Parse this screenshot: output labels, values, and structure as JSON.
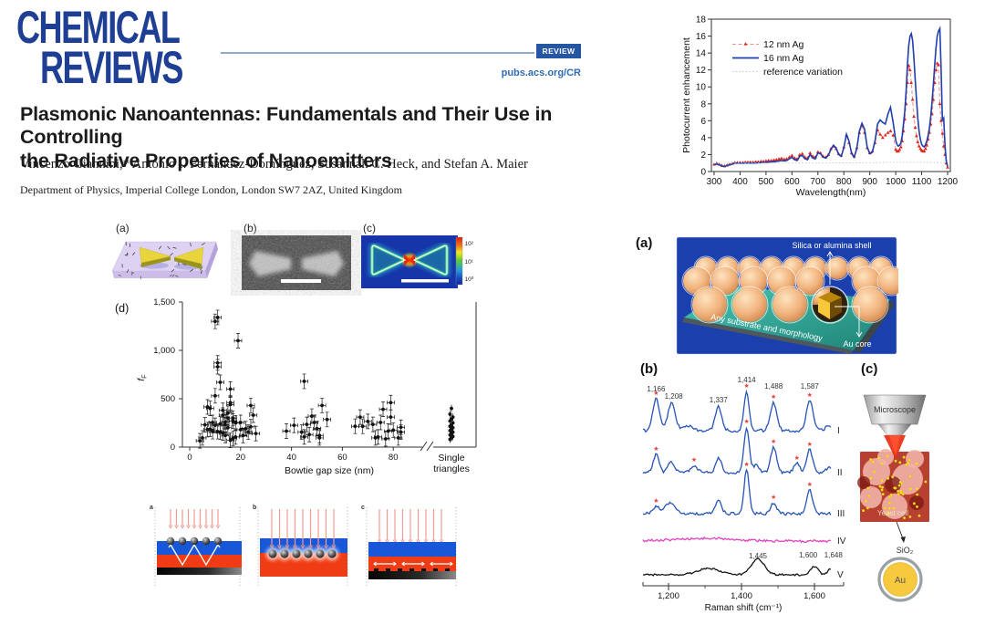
{
  "header": {
    "logo_line1": "CHEMICAL",
    "logo_line2": "REVIEWS",
    "badge_label": "REVIEW",
    "site_url": "pubs.acs.org/CR",
    "brand_color": "#1e3f94",
    "badge_color": "#2456a4"
  },
  "article": {
    "title_line1": "Plasmonic Nanoantennas: Fundamentals and Their Use in Controlling",
    "title_line2": "the Radiative Properties of Nanoemitters",
    "authors": "Vincenzo Giannini,* Antonio I. Fernández-Domínguez, Susannah C. Heck, and Stefan A. Maier",
    "affiliation": "Department of Physics, Imperial College London, London SW7 2AZ, United Kingdom"
  },
  "left_figure": {
    "panel_a_label": "(a)",
    "panel_b_label": "(b)",
    "panel_c_label": "(c)",
    "panel_d_label": "(d)",
    "colorbar_ticks": [
      "10²",
      "10¹",
      "10⁰"
    ],
    "bottom_panel_labels": [
      "a",
      "b",
      "c"
    ]
  },
  "right_figure": {
    "panel_a_label": "(a)",
    "panel_b_label": "(b)",
    "panel_c_label": "(c)",
    "shell_label": "Silica or alumina shell",
    "substrate_label": "Any substrate and morphology",
    "core_label": "Au core",
    "microscope_label": "Microscope",
    "cell_label": "Yeast cell",
    "sio2_label": "SiO₂",
    "au_label": "Au"
  },
  "chart_data": [
    {
      "id": "photocurrent",
      "type": "line",
      "title": "",
      "xlabel": "Wavelength(nm)",
      "ylabel": "Photocurrent enhancement",
      "xlim": [
        300,
        1200
      ],
      "ylim": [
        0,
        18
      ],
      "xticks": [
        300,
        400,
        500,
        600,
        700,
        800,
        900,
        1000,
        1100,
        1200
      ],
      "yticks": [
        0,
        2,
        4,
        6,
        8,
        10,
        12,
        14,
        16,
        18
      ],
      "legend_position": "upper-left-inside",
      "x_encoding": "segments [start,end,step]",
      "series": [
        {
          "name": "12 nm Ag",
          "style": "dashed",
          "stroke": "#f0928c",
          "marker": "triangle",
          "marker_color": "#e02318",
          "x_segments": [
            [
              300,
              990,
              10
            ],
            [
              1000,
              1200,
              5
            ]
          ],
          "y": [
            0.85,
            0.95,
            0.85,
            0.7,
            0.65,
            0.75,
            0.85,
            0.95,
            1.05,
            1.05,
            1.05,
            1.05,
            1.1,
            1.1,
            1.1,
            1.1,
            1.15,
            1.15,
            1.2,
            1.2,
            1.25,
            1.3,
            1.3,
            1.35,
            1.4,
            1.5,
            1.55,
            1.45,
            1.5,
            1.7,
            1.9,
            1.6,
            1.5,
            2.0,
            2.1,
            1.7,
            1.6,
            2.2,
            1.8,
            1.7,
            2.3,
            2.2,
            1.8,
            1.7,
            2.0,
            2.7,
            3.0,
            2.7,
            2.1,
            1.9,
            2.9,
            4.3,
            3.4,
            2.2,
            1.8,
            2.8,
            4.6,
            5.4,
            4.6,
            2.8,
            2.2,
            2.4,
            3.4,
            4.9,
            4.4,
            4.0,
            4.3,
            4.6,
            4.8,
            4.3,
            2.6,
            2.4,
            2.4,
            2.6,
            2.9,
            3.6,
            4.8,
            6.2,
            8.0,
            10.5,
            12.5,
            12.0,
            10.5,
            8.5,
            6.5,
            5.2,
            4.2,
            3.5,
            3.0,
            2.7,
            2.5,
            2.4,
            2.4,
            2.7,
            3.1,
            3.8,
            4.6,
            5.6,
            6.8,
            8.5,
            10.5,
            12.0,
            12.8,
            12.6,
            8.0,
            6.0,
            4.5,
            3.0,
            2.0,
            1.0,
            0.5
          ]
        },
        {
          "name": "16 nm Ag",
          "style": "solid",
          "stroke": "#1f3fae",
          "x_segments": [
            [
              300,
              990,
              10
            ],
            [
              1000,
              1200,
              5
            ]
          ],
          "y": [
            0.8,
            0.9,
            0.8,
            0.65,
            0.6,
            0.7,
            0.8,
            0.9,
            1.0,
            1.0,
            1.0,
            1.0,
            1.0,
            1.0,
            1.0,
            1.0,
            1.0,
            1.05,
            1.05,
            1.1,
            1.1,
            1.1,
            1.15,
            1.15,
            1.2,
            1.25,
            1.3,
            1.25,
            1.3,
            1.5,
            1.7,
            1.4,
            1.3,
            1.8,
            1.9,
            1.5,
            1.4,
            2.0,
            1.6,
            1.5,
            2.2,
            2.1,
            1.7,
            1.6,
            1.9,
            2.6,
            3.1,
            2.8,
            2.0,
            1.8,
            2.8,
            4.4,
            3.6,
            2.1,
            1.7,
            2.7,
            4.8,
            5.7,
            5.0,
            2.9,
            2.1,
            2.3,
            3.6,
            5.6,
            6.1,
            5.8,
            5.6,
            6.8,
            7.6,
            5.8,
            3.7,
            3.2,
            3.0,
            3.1,
            3.4,
            4.2,
            5.6,
            7.2,
            9.5,
            12.5,
            14.8,
            16.0,
            16.3,
            15.5,
            13.5,
            11.0,
            8.5,
            6.3,
            4.8,
            3.8,
            3.2,
            3.0,
            2.9,
            3.2,
            3.6,
            4.3,
            5.2,
            6.5,
            8.2,
            10.3,
            12.5,
            14.5,
            16.0,
            16.6,
            16.9,
            12.0,
            6.0,
            6.3,
            3.0,
            1.2,
            0.6
          ]
        },
        {
          "name": "reference variation",
          "style": "dotted",
          "stroke": "#c4c4c4",
          "x_segments": [
            [
              0,
              0,
              1
            ]
          ],
          "x_explicit": [
            300,
            400,
            500,
            600,
            700,
            800,
            900,
            1000,
            1100,
            1190
          ],
          "y": [
            0.95,
            1.0,
            1.0,
            1.0,
            1.0,
            1.02,
            1.05,
            1.1,
            1.1,
            1.05
          ]
        }
      ]
    },
    {
      "id": "bowtie_gap",
      "type": "scatter",
      "panel_label": "(d)",
      "xlabel": "Bowtie gap size (nm)",
      "ylabel": "fF",
      "ylabel_main": "f",
      "ylabel_sub": "F",
      "xticks": [
        0,
        20,
        40,
        60,
        80
      ],
      "yticks": [
        0,
        500,
        1000,
        1500
      ],
      "ytick_labels": [
        "0",
        "500",
        "1,000",
        "1,500"
      ],
      "ylim": [
        0,
        1500
      ],
      "axis_break": true,
      "extra_category_label": [
        "Single",
        "triangles"
      ],
      "points": [
        [
          4,
          65
        ],
        [
          5,
          95
        ],
        [
          6,
          230
        ],
        [
          7,
          415
        ],
        [
          7,
          180
        ],
        [
          8,
          400
        ],
        [
          8,
          185
        ],
        [
          9,
          255
        ],
        [
          9,
          160
        ],
        [
          10,
          1300
        ],
        [
          10,
          530
        ],
        [
          10,
          225
        ],
        [
          11,
          1340
        ],
        [
          11,
          870
        ],
        [
          11,
          830
        ],
        [
          11,
          160
        ],
        [
          12,
          670
        ],
        [
          12,
          240
        ],
        [
          12,
          155
        ],
        [
          13,
          380
        ],
        [
          13,
          330
        ],
        [
          13,
          145
        ],
        [
          14,
          260
        ],
        [
          14,
          230
        ],
        [
          14,
          120
        ],
        [
          15,
          350
        ],
        [
          15,
          300
        ],
        [
          15,
          200
        ],
        [
          16,
          600
        ],
        [
          16,
          460
        ],
        [
          16,
          440
        ],
        [
          16,
          70
        ],
        [
          17,
          300
        ],
        [
          17,
          270
        ],
        [
          17,
          90
        ],
        [
          18,
          250
        ],
        [
          18,
          105
        ],
        [
          19,
          1100
        ],
        [
          20,
          255
        ],
        [
          20,
          180
        ],
        [
          21,
          120
        ],
        [
          22,
          190
        ],
        [
          23,
          155
        ],
        [
          24,
          430
        ],
        [
          24,
          210
        ],
        [
          25,
          330
        ],
        [
          26,
          140
        ],
        [
          38,
          165
        ],
        [
          41,
          225
        ],
        [
          44,
          155
        ],
        [
          45,
          680
        ],
        [
          45,
          105
        ],
        [
          46,
          235
        ],
        [
          47,
          130
        ],
        [
          48,
          320
        ],
        [
          49,
          255
        ],
        [
          50,
          190
        ],
        [
          51,
          120
        ],
        [
          51,
          95
        ],
        [
          52,
          430
        ],
        [
          54,
          285
        ],
        [
          65,
          215
        ],
        [
          67,
          310
        ],
        [
          68,
          215
        ],
        [
          70,
          265
        ],
        [
          72,
          235
        ],
        [
          73,
          95
        ],
        [
          74,
          105
        ],
        [
          75,
          255
        ],
        [
          76,
          390
        ],
        [
          77,
          85
        ],
        [
          78,
          165
        ],
        [
          79,
          460
        ],
        [
          79,
          310
        ],
        [
          80,
          175
        ],
        [
          82,
          95
        ],
        [
          83,
          205
        ],
        [
          83,
          155
        ]
      ],
      "single_triangle_values": [
        80,
        95,
        110,
        125,
        140,
        155,
        170,
        185,
        200,
        215,
        230,
        250,
        270,
        290,
        310,
        340,
        400
      ]
    },
    {
      "id": "raman",
      "type": "line",
      "xlabel": "Raman shift (cm⁻¹)",
      "xticks": [
        1200,
        1400,
        1600
      ],
      "xtick_labels": [
        "1,200",
        "1,400",
        "1,600"
      ],
      "star_color": "#e84040",
      "curve_color_blue": "#2553b8",
      "curve_color_magenta": "#e342c0",
      "curve_color_black": "#151515",
      "peak_labels": [
        {
          "text": "1,166",
          "cm": 1166,
          "y": 36
        },
        {
          "text": "1,208",
          "cm": 1214,
          "y": 44
        },
        {
          "text": "1,337",
          "cm": 1337,
          "y": 48
        },
        {
          "text": "1,414",
          "cm": 1414,
          "y": 26
        },
        {
          "text": "1,488",
          "cm": 1488,
          "y": 33
        },
        {
          "text": "1,587",
          "cm": 1587,
          "y": 33
        }
      ],
      "bottom_peak_labels": [
        {
          "text": "1,445",
          "cm": 1445,
          "y": 219
        },
        {
          "text": "1,600",
          "cm": 1583,
          "y": 218
        },
        {
          "text": "1,648",
          "cm": 1652,
          "y": 218
        }
      ],
      "spectra": [
        {
          "label": "I",
          "color": "#2553b8",
          "baseline_y": 79,
          "noise": 1.6,
          "peaks": [
            [
              1166,
              35,
              9
            ],
            [
              1208,
              30,
              10
            ],
            [
              1250,
              6,
              12
            ],
            [
              1337,
              26,
              9
            ],
            [
              1414,
              43,
              7
            ],
            [
              1488,
              31,
              9
            ],
            [
              1587,
              33,
              9
            ],
            [
              1640,
              5,
              10
            ]
          ],
          "stars": [
            1166,
            1414,
            1488,
            1587
          ]
        },
        {
          "label": "II",
          "color": "#2553b8",
          "baseline_y": 125,
          "noise": 1.6,
          "peaks": [
            [
              1166,
              20,
              8
            ],
            [
              1208,
              12,
              9
            ],
            [
              1270,
              8,
              9
            ],
            [
              1337,
              16,
              8
            ],
            [
              1414,
              50,
              7
            ],
            [
              1440,
              8,
              9
            ],
            [
              1488,
              28,
              8
            ],
            [
              1552,
              10,
              8
            ],
            [
              1587,
              25,
              8
            ],
            [
              1640,
              5,
              10
            ]
          ],
          "stars": [
            1166,
            1270,
            1414,
            1488,
            1552,
            1587
          ]
        },
        {
          "label": "III",
          "color": "#2553b8",
          "baseline_y": 170,
          "noise": 1.5,
          "peaks": [
            [
              1166,
              8,
              9
            ],
            [
              1205,
              12,
              14
            ],
            [
              1337,
              16,
              8
            ],
            [
              1414,
              48,
              7
            ],
            [
              1488,
              12,
              8
            ],
            [
              1587,
              26,
              8
            ]
          ],
          "stars": [
            1166,
            1414,
            1488,
            1587
          ]
        },
        {
          "label": "IV",
          "color": "#e342c0",
          "baseline_y": 200,
          "noise": 1.3,
          "peaks": [
            [
              1300,
              3,
              80
            ]
          ],
          "stars": []
        },
        {
          "label": "V",
          "color": "#151515",
          "baseline_y": 237,
          "noise": 1.0,
          "peaks": [
            [
              1310,
              7,
              30
            ],
            [
              1445,
              17,
              18
            ],
            [
              1600,
              9,
              10
            ],
            [
              1648,
              7,
              10
            ]
          ],
          "stars": []
        }
      ]
    }
  ]
}
